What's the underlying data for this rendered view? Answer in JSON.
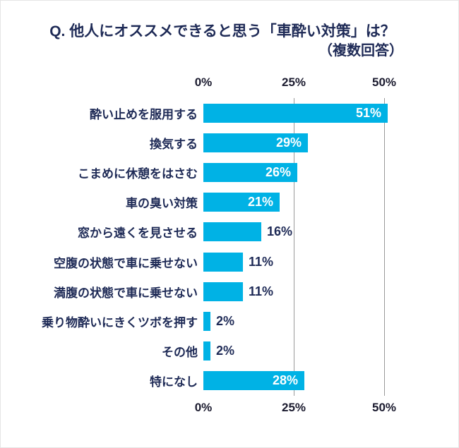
{
  "title": {
    "line1": "Q. 他人にオススメできると思う「車酔い対策」は？",
    "line2": "（複数回答）"
  },
  "axis": {
    "ticks": [
      "0%",
      "25%",
      "50%"
    ],
    "max_percent": 50
  },
  "colors": {
    "bar": "#00b2e5",
    "text": "#1e2a56",
    "grid": "#9a9a9a",
    "value_inside": "#ffffff"
  },
  "chart_data": {
    "type": "bar",
    "orientation": "horizontal",
    "title": "Q. 他人にオススメできると思う「車酔い対策」は？（複数回答）",
    "xlabel": "",
    "ylabel": "",
    "xlim": [
      0,
      50
    ],
    "grid": "vertical lines at 25% and 50%",
    "legend": "none",
    "categories": [
      "酔い止めを服用する",
      "換気する",
      "こまめに休憩をはさむ",
      "車の臭い対策",
      "窓から遠くを見させる",
      "空腹の状態で車に乗せない",
      "満腹の状態で車に乗せない",
      "乗り物酔いにきくツボを押す",
      "その他",
      "特になし"
    ],
    "values": [
      51,
      29,
      26,
      21,
      16,
      11,
      11,
      2,
      2,
      28
    ],
    "value_labels": [
      "51%",
      "29%",
      "26%",
      "21%",
      "16%",
      "11%",
      "11%",
      "2%",
      "2%",
      "28%"
    ],
    "label_position": [
      "inside",
      "inside",
      "inside",
      "inside",
      "outside",
      "outside",
      "outside",
      "outside",
      "outside",
      "inside"
    ]
  }
}
